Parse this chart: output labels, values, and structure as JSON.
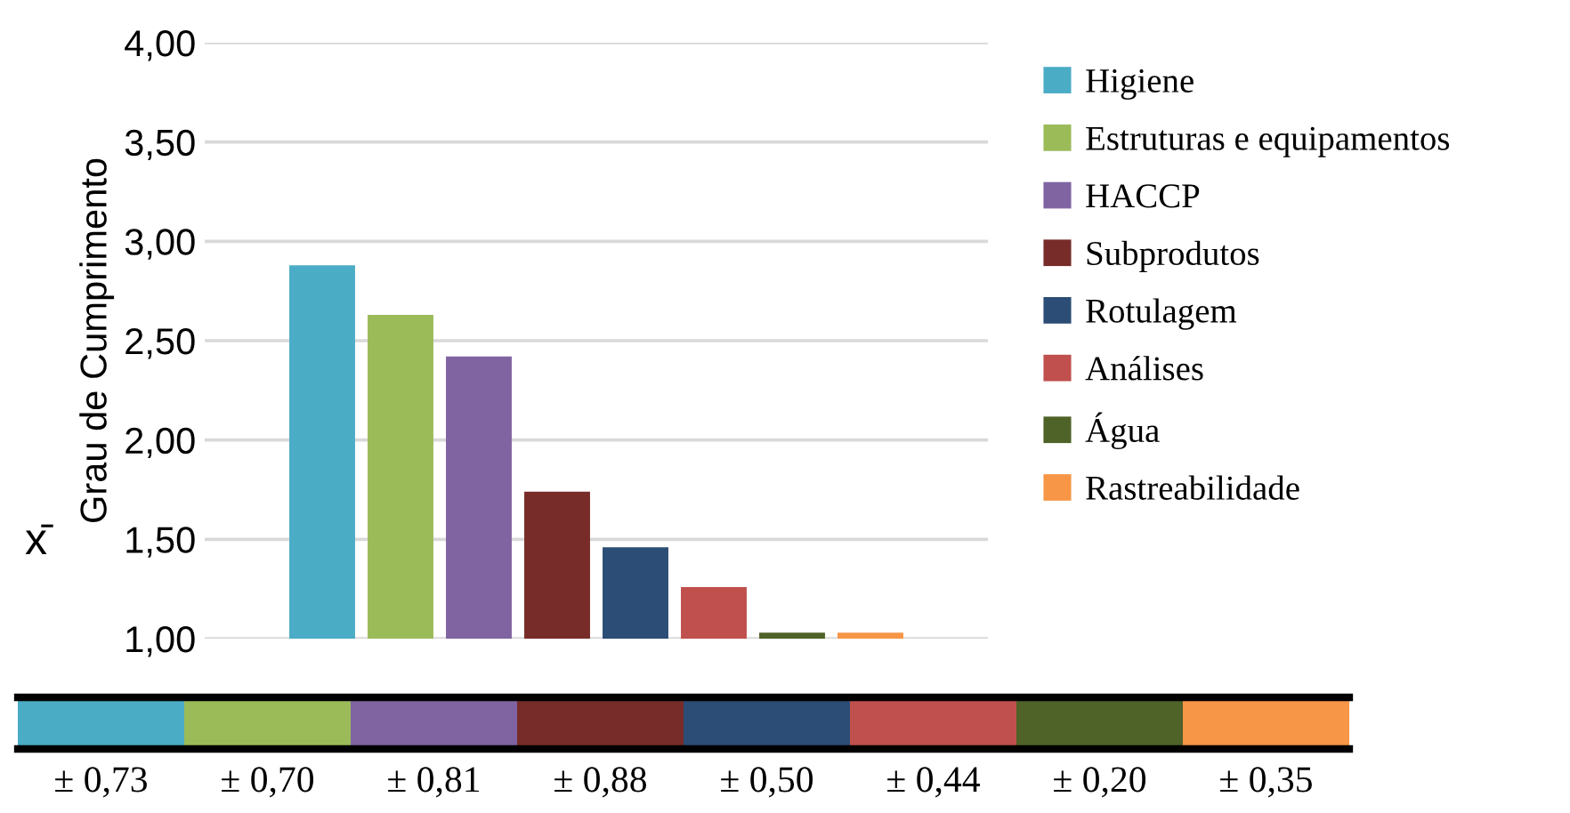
{
  "chart_data": {
    "type": "bar",
    "ylabel": "Grau de Cumprimento",
    "categories": [
      null
    ],
    "series": [
      {
        "name": "Higiene",
        "color": "#4bacc6",
        "values": [
          2.88
        ]
      },
      {
        "name": "Estruturas e equipamentos",
        "color": "#9bbb59",
        "values": [
          2.63
        ]
      },
      {
        "name": "HACCP",
        "color": "#8064a2",
        "values": [
          2.42
        ]
      },
      {
        "name": "Subprodutos",
        "color": "#772c2a",
        "values": [
          1.74
        ]
      },
      {
        "name": "Rotulagem",
        "color": "#2c4d75",
        "values": [
          1.46
        ]
      },
      {
        "name": "Análises",
        "color": "#c0504d",
        "values": [
          1.26
        ]
      },
      {
        "name": "Água",
        "color": "#4f6228",
        "values": [
          1.03
        ]
      },
      {
        "name": "Rastreabilidade",
        "color": "#f79646",
        "values": [
          1.03
        ]
      }
    ],
    "ylim": [
      1,
      4
    ],
    "yticks": [
      {
        "value": 1,
        "label": "1,00"
      },
      {
        "value": 1.5,
        "label": "1,50"
      },
      {
        "value": 2,
        "label": "2,00"
      },
      {
        "value": 2.5,
        "label": "2,50"
      },
      {
        "value": 3,
        "label": "3,00"
      },
      {
        "value": 3.5,
        "label": "3,50"
      },
      {
        "value": 4,
        "label": "4,00"
      }
    ],
    "grid": "y",
    "legend": "right",
    "tick_labels": "y",
    "annotations": [
      "x̄",
      "± 0,73",
      "± 0,70",
      "± 0,81",
      "± 0,88",
      "± 0,50",
      "± 0,44",
      "± 0,20",
      "± 0,35"
    ]
  }
}
